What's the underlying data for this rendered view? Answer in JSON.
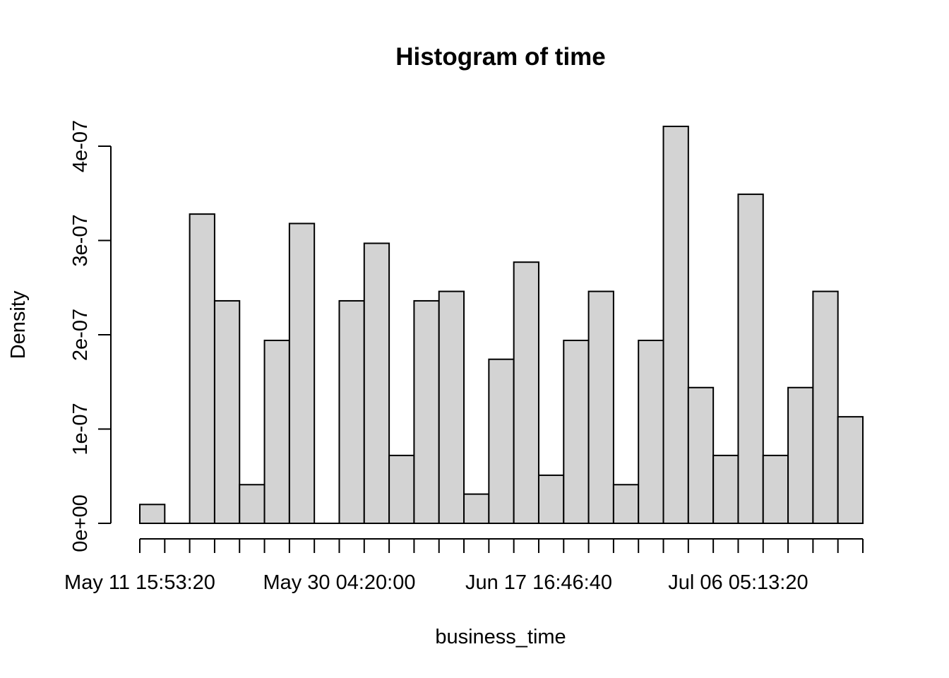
{
  "chart_data": {
    "type": "bar",
    "title": "Histogram of time",
    "xlabel": "business_time",
    "ylabel": "Density",
    "bin_count": 29,
    "values": [
      2e-08,
      0,
      3.28e-07,
      2.36e-07,
      4.1e-08,
      1.94e-07,
      3.18e-07,
      0,
      2.36e-07,
      2.97e-07,
      7.2e-08,
      2.36e-07,
      2.46e-07,
      3.1e-08,
      1.74e-07,
      2.77e-07,
      5.1e-08,
      1.94e-07,
      2.46e-07,
      4.1e-08,
      1.94e-07,
      4.21e-07,
      1.44e-07,
      7.2e-08,
      3.49e-07,
      7.2e-08,
      1.44e-07,
      2.46e-07,
      1.13e-07
    ],
    "ylim": [
      0,
      4e-07
    ],
    "y_ticks": [
      0,
      1e-07,
      2e-07,
      3e-07,
      4e-07
    ],
    "y_tick_labels": [
      "0e+00",
      "1e-07",
      "2e-07",
      "3e-07",
      "4e-07"
    ],
    "x_tick_labels": [
      "May 11 15:53:20",
      "May 30 04:20:00",
      "Jun 17 16:46:40",
      "Jul 06 05:13:20"
    ],
    "x_tick_label_bins": [
      0,
      8,
      16,
      24
    ],
    "grid": false,
    "colors": {
      "bar_fill": "#d3d3d3",
      "bar_stroke": "#000000"
    }
  }
}
